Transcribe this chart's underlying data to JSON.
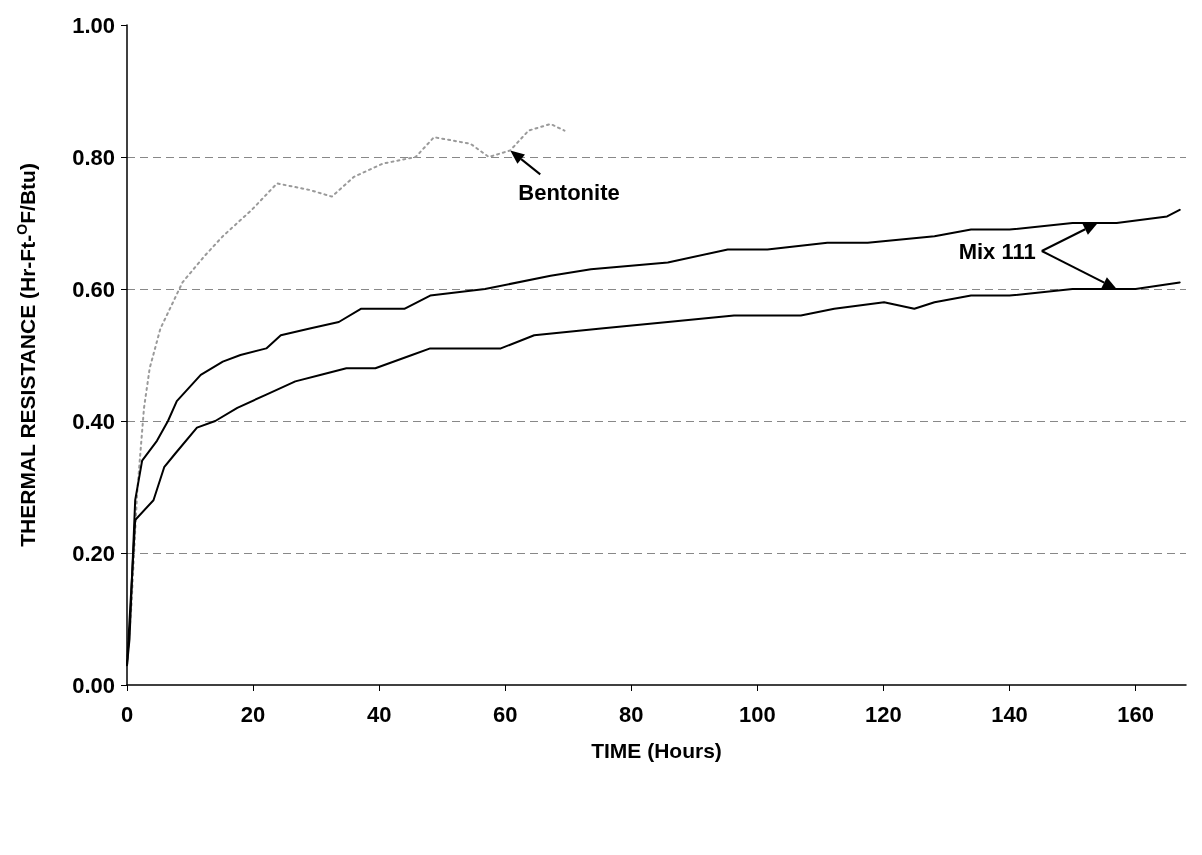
{
  "chart_data": {
    "type": "line",
    "xlabel": "TIME (Hours)",
    "ylabel": "THERMAL RESISTANCE (Hr-Ft-$^{O}$F/Btu)",
    "xlim": [
      0,
      168
    ],
    "xticks": [
      0,
      20,
      40,
      60,
      80,
      100,
      120,
      140,
      160
    ],
    "ylim": [
      0,
      1
    ],
    "yticks": [
      {
        "value": 0,
        "label": "0.00"
      },
      {
        "value": 0.2,
        "label": "0.20"
      },
      {
        "value": 0.4,
        "label": "0.40"
      },
      {
        "value": 0.6,
        "label": "0.60"
      },
      {
        "value": 0.8,
        "label": "0.80"
      },
      {
        "value": 1,
        "label": "1.00"
      }
    ],
    "grid": "y",
    "marker": "none",
    "series": [
      {
        "color": "#9a9a9a",
        "line_style": "dotted",
        "x": [
          0,
          0.7,
          1.6,
          2.7,
          3.6,
          5.3,
          8.8,
          12.3,
          15.2,
          19.8,
          23.8,
          29,
          32.5,
          36,
          40.6,
          45.8,
          48.7,
          54.5,
          57.4,
          60.8,
          63.7,
          67.2,
          69.4
        ],
        "values": [
          0.03,
          0.12,
          0.29,
          0.42,
          0.48,
          0.54,
          0.61,
          0.65,
          0.68,
          0.72,
          0.76,
          0.75,
          0.74,
          0.77,
          0.79,
          0.8,
          0.83,
          0.82,
          0.8,
          0.81,
          0.84,
          0.85,
          0.84
        ]
      },
      {
        "color": "#000000",
        "line_style": "solid",
        "x": [
          0,
          0.4,
          1.3,
          2.4,
          4.75,
          6.5,
          7.9,
          11.7,
          15.2,
          18,
          22.1,
          24.4,
          29,
          33.6,
          37.1,
          44,
          48.1,
          56.8,
          67.2,
          73.6,
          85.8,
          95.3,
          101.6,
          111.1,
          117.5,
          128.1,
          133.9,
          140,
          150,
          157,
          165,
          167
        ],
        "values": [
          0.03,
          0.07,
          0.28,
          0.34,
          0.37,
          0.4,
          0.43,
          0.47,
          0.49,
          0.5,
          0.51,
          0.53,
          0.54,
          0.55,
          0.57,
          0.57,
          0.59,
          0.6,
          0.62,
          0.63,
          0.64,
          0.66,
          0.66,
          0.67,
          0.67,
          0.68,
          0.69,
          0.69,
          0.7,
          0.7,
          0.71,
          0.72
        ]
      },
      {
        "color": "#000000",
        "line_style": "solid",
        "x": [
          0,
          1.3,
          4.2,
          5.9,
          7.6,
          11.1,
          14,
          17.5,
          22.1,
          26.7,
          30.8,
          34.8,
          39.4,
          45.2,
          48.1,
          53.9,
          59.3,
          64.6,
          75.2,
          85.8,
          96.3,
          106.9,
          112.2,
          120.1,
          124.9,
          128.1,
          133.9,
          140,
          150,
          160,
          167
        ],
        "values": [
          0.03,
          0.25,
          0.28,
          0.33,
          0.35,
          0.39,
          0.4,
          0.42,
          0.44,
          0.46,
          0.47,
          0.48,
          0.48,
          0.5,
          0.51,
          0.51,
          0.51,
          0.53,
          0.54,
          0.55,
          0.56,
          0.56,
          0.57,
          0.58,
          0.57,
          0.58,
          0.59,
          0.59,
          0.6,
          0.6,
          0.61
        ]
      }
    ],
    "annotations": [
      {
        "text": "Bentonite",
        "x": 60.8,
        "y": 0.81
      },
      {
        "text": "Mix 111",
        "x": 154,
        "y": 0.7
      }
    ]
  }
}
